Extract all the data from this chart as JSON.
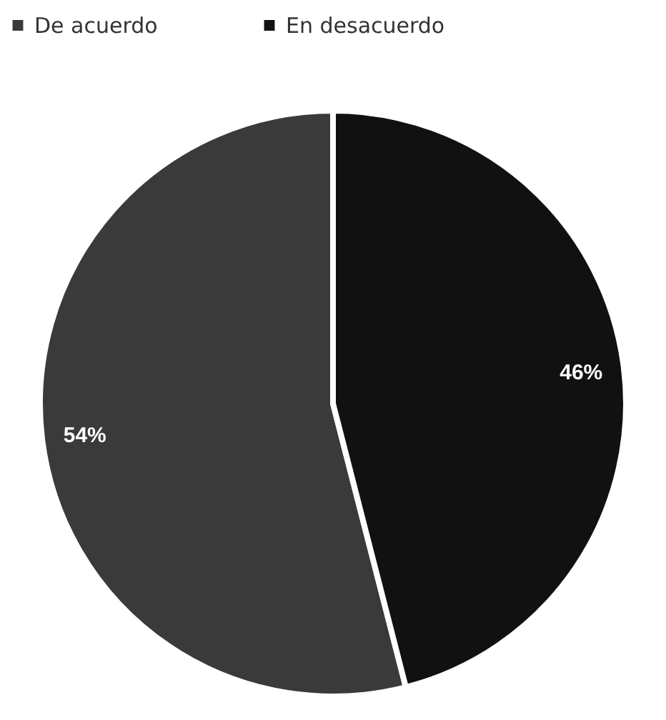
{
  "chart_data": {
    "type": "pie",
    "categories": [
      "De acuerdo",
      "En desacuerdo"
    ],
    "values": [
      54,
      46
    ],
    "colors": [
      "#3a3a3a",
      "#111111"
    ],
    "value_labels": [
      "54%",
      "46%"
    ],
    "legend": "top"
  }
}
